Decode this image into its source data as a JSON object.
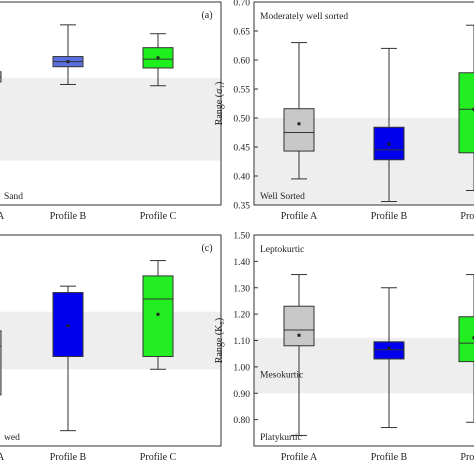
{
  "chart_data": [
    {
      "type": "box",
      "panel_label": "(a)",
      "categories": [
        "Profile A",
        "Profile B",
        "Profile C"
      ],
      "band": [
        0.35,
        1.0
      ],
      "ylim": [
        0,
        1.6
      ],
      "ylabel": "",
      "yticks": [],
      "annotations": [
        {
          "text": "Sand",
          "pos": "bottom-left"
        }
      ],
      "boxes": [
        {
          "name": "Profile A",
          "color": "#c8c8c8",
          "whisker_low": 0.0,
          "q1": 0.97,
          "median": 1.01,
          "q3": 1.05,
          "whisker_high": 1.05,
          "mean": 1.01
        },
        {
          "name": "Profile B",
          "color": "#5b6fe0",
          "whisker_low": 0.95,
          "q1": 1.09,
          "median": 1.13,
          "q3": 1.17,
          "whisker_high": 1.42,
          "mean": 1.13
        },
        {
          "name": "Profile C",
          "color": "#1ef01e",
          "whisker_low": 0.94,
          "q1": 1.08,
          "median": 1.15,
          "q3": 1.24,
          "whisker_high": 1.35,
          "mean": 1.16
        }
      ]
    },
    {
      "type": "box",
      "panel_label": "",
      "categories": [
        "Profile A",
        "Profile B",
        "Profile"
      ],
      "band": [
        0.35,
        0.5
      ],
      "ylim": [
        0.35,
        0.7
      ],
      "ylabel": "Range (σ₁)",
      "yticks": [
        "0.35",
        "0.40",
        "0.45",
        "0.50",
        "0.55",
        "0.60",
        "0.65",
        "0.70"
      ],
      "ytick_values": [
        0.35,
        0.4,
        0.45,
        0.5,
        0.55,
        0.6,
        0.65,
        0.7
      ],
      "annotations": [
        {
          "text": "Moderately well sorted",
          "pos": "top-left"
        },
        {
          "text": "Well Sorted",
          "pos": "bottom-left"
        }
      ],
      "boxes": [
        {
          "name": "Profile A",
          "color": "#c8c8c8",
          "whisker_low": 0.395,
          "q1": 0.443,
          "median": 0.475,
          "q3": 0.516,
          "whisker_high": 0.63,
          "mean": 0.49
        },
        {
          "name": "Profile B",
          "color": "#0000ee",
          "whisker_low": 0.356,
          "q1": 0.428,
          "median": 0.445,
          "q3": 0.484,
          "whisker_high": 0.62,
          "mean": 0.455
        },
        {
          "name": "Profile",
          "color": "#22ee22",
          "whisker_low": 0.375,
          "q1": 0.44,
          "median": 0.515,
          "q3": 0.578,
          "whisker_high": 0.66,
          "mean": 0.515
        }
      ]
    },
    {
      "type": "box",
      "panel_label": "(c)",
      "categories": [
        "Profile A",
        "Profile B",
        "Profile C"
      ],
      "band": [
        -0.1,
        0.35
      ],
      "ylim": [
        -0.7,
        0.95
      ],
      "ylabel": "",
      "yticks": [],
      "annotations": [
        {
          "text": "wed",
          "pos": "bottom-left"
        }
      ],
      "boxes": [
        {
          "name": "Profile A",
          "color": "#c8c8c8",
          "whisker_low": -0.3,
          "q1": -0.3,
          "median": 0.08,
          "q3": 0.2,
          "whisker_high": 0.2,
          "mean": 0.08
        },
        {
          "name": "Profile B",
          "color": "#0000ee",
          "whisker_low": -0.58,
          "q1": 0.0,
          "median": 0.0,
          "q3": 0.5,
          "whisker_high": 0.55,
          "mean": 0.24
        },
        {
          "name": "Profile C",
          "color": "#22ee22",
          "whisker_low": -0.1,
          "q1": 0.0,
          "median": 0.45,
          "q3": 0.63,
          "whisker_high": 0.75,
          "mean": 0.33
        }
      ]
    },
    {
      "type": "box",
      "panel_label": "",
      "categories": [
        "Profile A",
        "Profile B",
        "Profile"
      ],
      "band": [
        0.9,
        1.11
      ],
      "ylim": [
        0.7,
        1.5
      ],
      "ylabel": "Range (K₆)",
      "yticks": [
        "0.80",
        "0.90",
        "1.00",
        "1.10",
        "1.20",
        "1.30",
        "1.40",
        "1.50"
      ],
      "ytick_values": [
        0.8,
        0.9,
        1.0,
        1.1,
        1.2,
        1.3,
        1.4,
        1.5
      ],
      "annotations": [
        {
          "text": "Leptokurtic",
          "pos": "top-left"
        },
        {
          "text": "Mesokurtic",
          "pos": "middle-left"
        },
        {
          "text": "Platykurtic",
          "pos": "bottom-left"
        }
      ],
      "boxes": [
        {
          "name": "Profile A",
          "color": "#c8c8c8",
          "whisker_low": 0.74,
          "q1": 1.08,
          "median": 1.14,
          "q3": 1.23,
          "whisker_high": 1.35,
          "mean": 1.12
        },
        {
          "name": "Profile B",
          "color": "#0000ee",
          "whisker_low": 0.77,
          "q1": 1.03,
          "median": 1.065,
          "q3": 1.095,
          "whisker_high": 1.3,
          "mean": 1.07
        },
        {
          "name": "Profile",
          "color": "#22ee22",
          "whisker_low": 0.79,
          "q1": 1.02,
          "median": 1.09,
          "q3": 1.19,
          "whisker_high": 1.35,
          "mean": 1.11
        }
      ]
    }
  ]
}
